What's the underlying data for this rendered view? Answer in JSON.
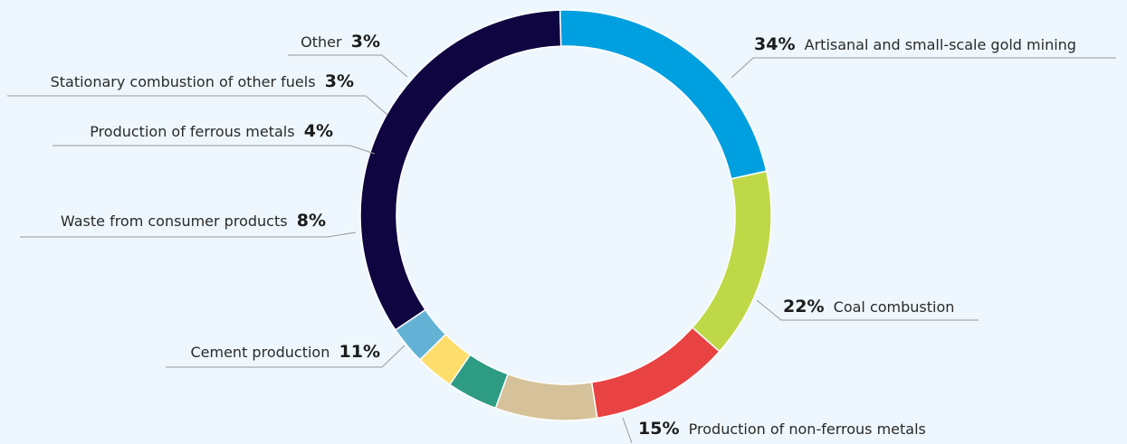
{
  "chart_data": {
    "type": "pie",
    "title": "",
    "style": "donut",
    "slices": [
      {
        "label": "Artisanal and small-scale gold mining",
        "value": 34,
        "display": "34%",
        "color": "#0f0540"
      },
      {
        "label": "Coal combustion",
        "value": 22,
        "display": "22%",
        "color": "#009fdf"
      },
      {
        "label": "Production of non-ferrous metals",
        "value": 15,
        "display": "15%",
        "color": "#bed847"
      },
      {
        "label": "Cement production",
        "value": 11,
        "display": "11%",
        "color": "#e94243"
      },
      {
        "label": "Waste from consumer products",
        "value": 8,
        "display": "8%",
        "color": "#d5c29a"
      },
      {
        "label": "Production of ferrous metals",
        "value": 4,
        "display": "4%",
        "color": "#2e9b83"
      },
      {
        "label": "Stationary combustion of other fuels",
        "value": 3,
        "display": "3%",
        "color": "#fddd6c"
      },
      {
        "label": "Other",
        "value": 3,
        "display": "3%",
        "color": "#63b2d6"
      }
    ]
  },
  "colors": {
    "background": "#eef7fd",
    "leader_line": "#9a9a9a",
    "gap": "#ffffff"
  }
}
